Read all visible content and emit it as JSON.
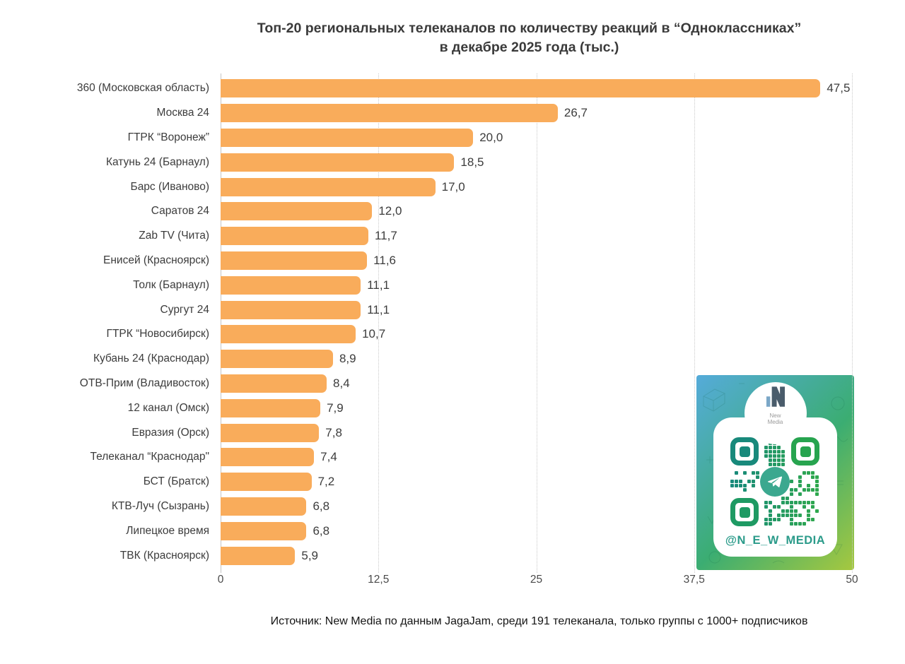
{
  "title": {
    "line1": "Топ-20 региональных телеканалов по количеству реакций в “Одноклассниках”",
    "line2": "в декабре 2025 года (тыс.)"
  },
  "chart_data": {
    "type": "bar",
    "orientation": "horizontal",
    "title": "Топ-20 региональных телеканалов по количеству реакций в “Одноклассниках” в декабре 2025 года (тыс.)",
    "categories": [
      "360 (Московская область)",
      "Москва 24",
      "ГТРК “Воронеж”",
      "Катунь 24 (Барнаул)",
      "Барс (Иваново)",
      "Саратов 24",
      "Zab TV (Чита)",
      "Енисей (Красноярск)",
      "Толк (Барнаул)",
      "Сургут 24",
      "ГТРК “Новосибирск)",
      "Кубань 24 (Краснодар)",
      "ОТВ-Прим (Владивосток)",
      "12 канал (Омск)",
      "Евразия (Орск)",
      "Телеканал “Краснодар\"",
      "БСТ (Братск)",
      "КТВ-Луч (Сызрань)",
      "Липецкое время",
      "ТВК (Красноярск)"
    ],
    "values": [
      47.5,
      26.7,
      20.0,
      18.5,
      17.0,
      12.0,
      11.7,
      11.6,
      11.1,
      11.1,
      10.7,
      8.9,
      8.4,
      7.9,
      7.8,
      7.4,
      7.2,
      6.8,
      6.8,
      5.9
    ],
    "value_labels": [
      "47,5",
      "26,7",
      "20,0",
      "18,5",
      "17,0",
      "12,0",
      "11,7",
      "11,6",
      "11,1",
      "11,1",
      "10,7",
      "8,9",
      "8,4",
      "7,9",
      "7,8",
      "7,4",
      "7,2",
      "6,8",
      "6,8",
      "5,9"
    ],
    "xlabel": "",
    "ylabel": "",
    "xlim": [
      0,
      50
    ],
    "x_tick_values": [
      0,
      12.5,
      25,
      37.5,
      50
    ],
    "x_tick_labels": [
      "0",
      "12,5",
      "25",
      "37,5",
      "50"
    ],
    "grid": "vertical-dotted",
    "legend": false
  },
  "source_note": "Источник: New Media по данным JagaJam, среди 191 телеканала, только группы с 1000+ подписчиков",
  "badge": {
    "handle": "@N_E_W_MEDIA",
    "logo_name": {
      "line1": "New",
      "line2": "Media"
    }
  },
  "colors": {
    "bar": "#F9AC5B",
    "title": "#3A3A3A",
    "label": "#3C3C3C",
    "value": "#3C3C3C",
    "tick": "#4A4A4A",
    "grid": "#C9C9C9",
    "axis": "#C5C5C5",
    "footer": "#141414",
    "badge_gradient": [
      "#55ABDA",
      "#3BAD72",
      "#A6C83F"
    ],
    "qr_teal": "#18897B",
    "qr_green": "#2FA84E",
    "telegram": "#3BA88F",
    "handle": "#2B9B8A",
    "logo_dark": "#4A5C6B",
    "logo_blue": "#7BA7C7"
  }
}
